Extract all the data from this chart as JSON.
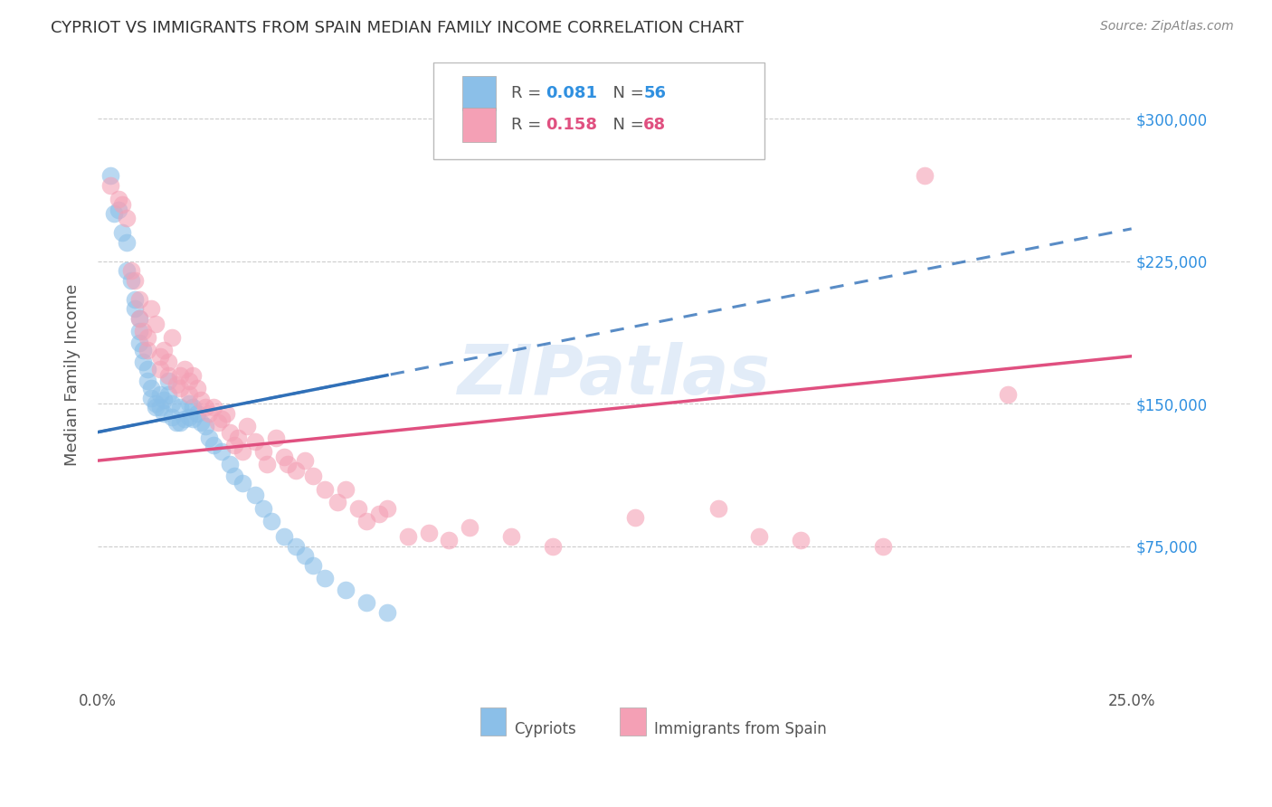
{
  "title": "CYPRIOT VS IMMIGRANTS FROM SPAIN MEDIAN FAMILY INCOME CORRELATION CHART",
  "source": "Source: ZipAtlas.com",
  "ylabel": "Median Family Income",
  "y_ticks": [
    75000,
    150000,
    225000,
    300000
  ],
  "y_tick_labels": [
    "$75,000",
    "$150,000",
    "$225,000",
    "$300,000"
  ],
  "x_range": [
    0.0,
    0.25
  ],
  "y_range": [
    0,
    330000
  ],
  "cypriot_color": "#8bbfe8",
  "spain_color": "#f4a0b5",
  "cypriot_line_color": "#3070b8",
  "spain_line_color": "#e05080",
  "background_color": "#ffffff",
  "watermark": "ZIPatlas",
  "cypriot_x": [
    0.003,
    0.004,
    0.005,
    0.006,
    0.007,
    0.007,
    0.008,
    0.009,
    0.009,
    0.01,
    0.01,
    0.01,
    0.011,
    0.011,
    0.012,
    0.012,
    0.013,
    0.013,
    0.014,
    0.014,
    0.015,
    0.015,
    0.016,
    0.016,
    0.017,
    0.017,
    0.018,
    0.018,
    0.019,
    0.02,
    0.02,
    0.021,
    0.022,
    0.022,
    0.023,
    0.023,
    0.024,
    0.025,
    0.026,
    0.027,
    0.028,
    0.03,
    0.032,
    0.033,
    0.035,
    0.038,
    0.04,
    0.042,
    0.045,
    0.048,
    0.05,
    0.052,
    0.055,
    0.06,
    0.065,
    0.07
  ],
  "cypriot_y": [
    270000,
    250000,
    252000,
    240000,
    235000,
    220000,
    215000,
    205000,
    200000,
    195000,
    188000,
    182000,
    178000,
    172000,
    168000,
    162000,
    158000,
    153000,
    150000,
    148000,
    155000,
    148000,
    152000,
    145000,
    162000,
    155000,
    150000,
    143000,
    140000,
    148000,
    140000,
    142000,
    150000,
    143000,
    148000,
    142000,
    145000,
    140000,
    138000,
    132000,
    128000,
    125000,
    118000,
    112000,
    108000,
    102000,
    95000,
    88000,
    80000,
    75000,
    70000,
    65000,
    58000,
    52000,
    45000,
    40000
  ],
  "spain_x": [
    0.003,
    0.005,
    0.006,
    0.007,
    0.008,
    0.009,
    0.01,
    0.01,
    0.011,
    0.012,
    0.012,
    0.013,
    0.014,
    0.015,
    0.015,
    0.016,
    0.017,
    0.017,
    0.018,
    0.019,
    0.02,
    0.02,
    0.021,
    0.022,
    0.022,
    0.023,
    0.024,
    0.025,
    0.026,
    0.027,
    0.028,
    0.029,
    0.03,
    0.031,
    0.032,
    0.033,
    0.034,
    0.035,
    0.036,
    0.038,
    0.04,
    0.041,
    0.043,
    0.045,
    0.046,
    0.048,
    0.05,
    0.052,
    0.055,
    0.058,
    0.06,
    0.063,
    0.065,
    0.068,
    0.07,
    0.075,
    0.08,
    0.085,
    0.09,
    0.1,
    0.11,
    0.13,
    0.15,
    0.16,
    0.17,
    0.19,
    0.2,
    0.22
  ],
  "spain_y": [
    265000,
    258000,
    255000,
    248000,
    220000,
    215000,
    205000,
    195000,
    188000,
    185000,
    178000,
    200000,
    192000,
    175000,
    168000,
    178000,
    172000,
    165000,
    185000,
    160000,
    165000,
    158000,
    168000,
    162000,
    155000,
    165000,
    158000,
    152000,
    148000,
    145000,
    148000,
    140000,
    142000,
    145000,
    135000,
    128000,
    132000,
    125000,
    138000,
    130000,
    125000,
    118000,
    132000,
    122000,
    118000,
    115000,
    120000,
    112000,
    105000,
    98000,
    105000,
    95000,
    88000,
    92000,
    95000,
    80000,
    82000,
    78000,
    85000,
    80000,
    75000,
    90000,
    95000,
    80000,
    78000,
    75000,
    270000,
    155000
  ],
  "cypriot_line_x": [
    0.0,
    0.07
  ],
  "cypriot_line_y": [
    135000,
    165000
  ],
  "spain_line_x": [
    0.0,
    0.25
  ],
  "spain_line_y": [
    120000,
    175000
  ]
}
